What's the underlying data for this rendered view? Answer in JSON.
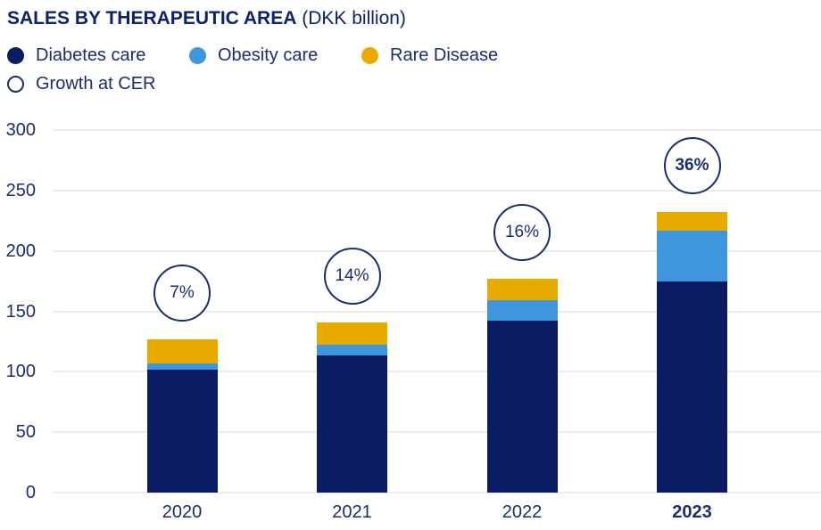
{
  "header": {
    "title": "SALES BY THERAPEUTIC AREA",
    "subtitle": "(DKK billion)"
  },
  "legend": {
    "items": [
      {
        "label": "Diabetes care",
        "type": "filled",
        "color": "#0a1c64"
      },
      {
        "label": "Obesity care",
        "type": "filled",
        "color": "#3e97dd"
      },
      {
        "label": "Rare Disease",
        "type": "filled",
        "color": "#e9aa00"
      },
      {
        "label": "Growth at CER",
        "type": "outline",
        "color": "#1b2d6f"
      }
    ]
  },
  "chart_data": {
    "type": "bar",
    "stacked": true,
    "title": "SALES BY THERAPEUTIC AREA",
    "unit": "DKK billion",
    "categories": [
      "2020",
      "2021",
      "2022",
      "2023"
    ],
    "series": [
      {
        "name": "Diabetes care",
        "color": "#0a1c64",
        "values": [
          101.5,
          113.6,
          142.6,
          174.9
        ]
      },
      {
        "name": "Obesity care",
        "color": "#3e97dd",
        "values": [
          5.6,
          8.4,
          16.9,
          41.6
        ]
      },
      {
        "name": "Rare Disease",
        "color": "#e9aa00",
        "values": [
          19.8,
          18.7,
          17.5,
          15.7
        ]
      }
    ],
    "totals": [
      126.9,
      140.8,
      177.0,
      232.3
    ],
    "growth_at_cer": [
      "7%",
      "14%",
      "16%",
      "36%"
    ],
    "ylim": [
      0,
      300
    ],
    "yticks": [
      0,
      50,
      100,
      150,
      200,
      250,
      300
    ],
    "grid": true,
    "legend_position": "top",
    "emphasized_category": "2023"
  }
}
